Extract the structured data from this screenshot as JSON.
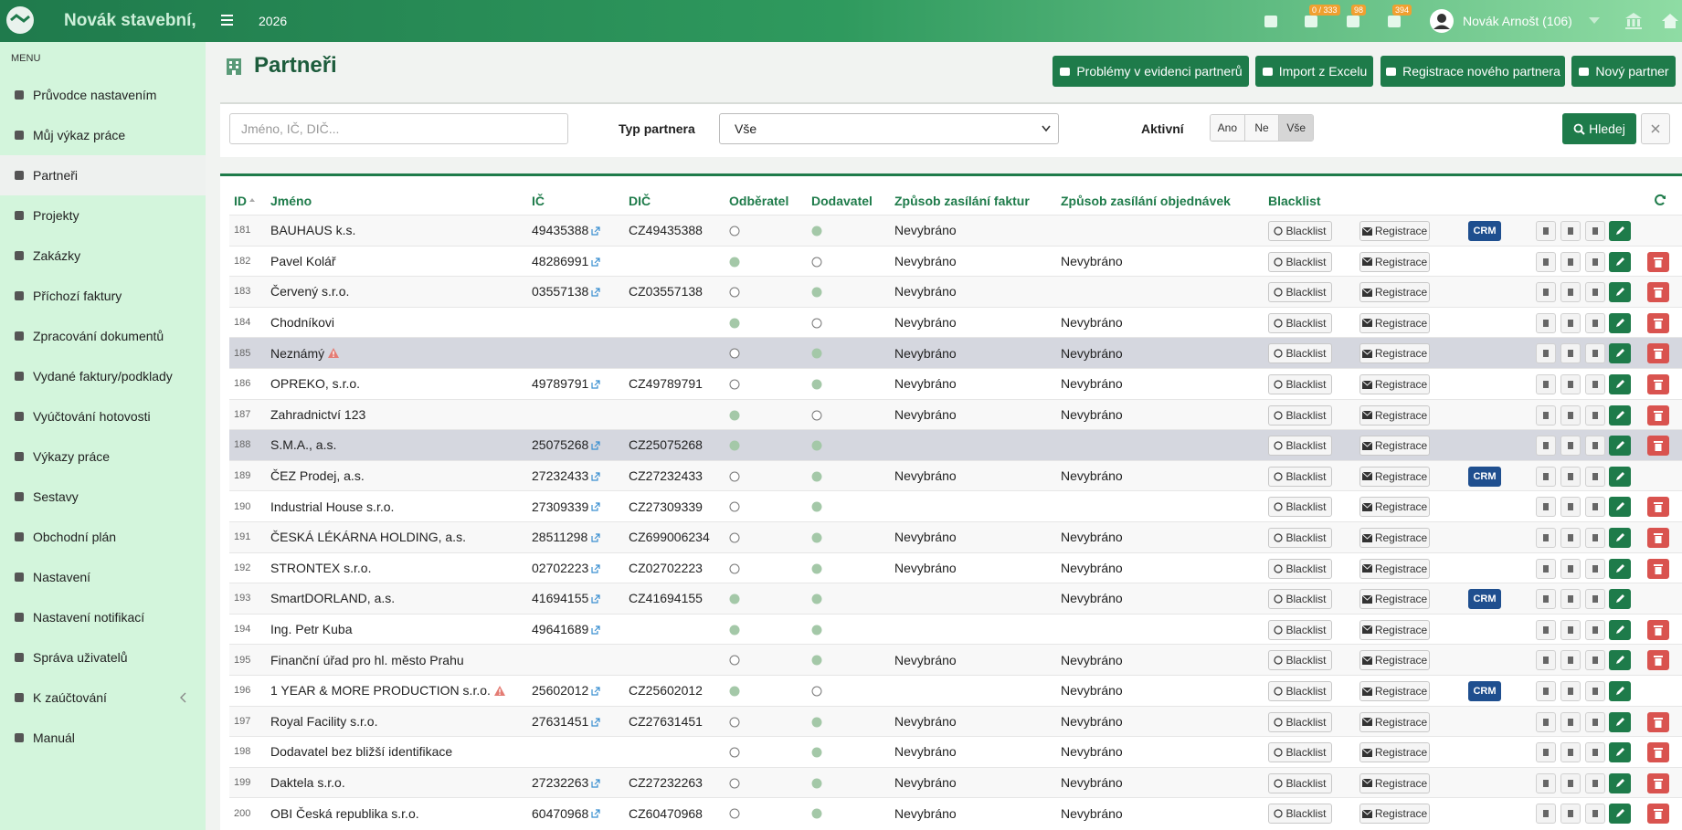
{
  "header": {
    "brand": "Novák stavební,",
    "year": "2026",
    "badges": [
      "0 / 333",
      "98",
      "394"
    ],
    "user": "Novák Arnošt (106)"
  },
  "sidebar": {
    "label": "MENU",
    "items": [
      "Průvodce nastavením",
      "Můj výkaz práce",
      "Partneři",
      "Projekty",
      "Zakázky",
      "Příchozí faktury",
      "Zpracování dokumentů",
      "Vydané faktury/podklady",
      "Vyúčtování hotovosti",
      "Výkazy práce",
      "Sestavy",
      "Obchodní plán",
      "Nastavení",
      "Nastavení notifikací",
      "Správa uživatelů",
      "K zaúčtování",
      "Manuál"
    ],
    "active": 2
  },
  "page": {
    "title": "Partneři",
    "buttons": [
      "Problémy v evidenci partnerů",
      "Import z Excelu",
      "Registrace nového partnera",
      "Nový partner"
    ]
  },
  "filter": {
    "placeholder": "Jméno, IČ, DIČ...",
    "type_label": "Typ partnera",
    "type_value": "Vše",
    "active_label": "Aktivní",
    "active_options": [
      "Ano",
      "Ne",
      "Vše"
    ],
    "active_selected": 2,
    "search": "Hledej"
  },
  "table": {
    "columns": [
      "ID",
      "Jméno",
      "IČ",
      "DIČ",
      "Odběratel",
      "Dodavatel",
      "Způsob zasílání faktur",
      "Způsob zasílání objednávek",
      "Blacklist"
    ],
    "buttons": {
      "blacklist": "Blacklist",
      "registrace": "Registrace",
      "crm": "CRM"
    },
    "rows": [
      {
        "id": 181,
        "name": "BAUHAUS k.s.",
        "ic": "49435388",
        "dic": "CZ49435388",
        "odberatel": false,
        "dodavatel": true,
        "faktury": "Nevybráno",
        "objednavky": null,
        "crm": true,
        "delete": false,
        "highlight": false,
        "warning": false
      },
      {
        "id": 182,
        "name": "Pavel Kolář",
        "ic": "48286991",
        "dic": null,
        "odberatel": true,
        "dodavatel": false,
        "faktury": "Nevybráno",
        "objednavky": "Nevybráno",
        "crm": false,
        "delete": true,
        "highlight": false,
        "warning": false
      },
      {
        "id": 183,
        "name": "Červený s.r.o.",
        "ic": "03557138",
        "dic": "CZ03557138",
        "odberatel": false,
        "dodavatel": true,
        "faktury": "Nevybráno",
        "objednavky": null,
        "crm": false,
        "delete": true,
        "highlight": false,
        "warning": false
      },
      {
        "id": 184,
        "name": "Chodníkovi",
        "ic": null,
        "dic": null,
        "odberatel": true,
        "dodavatel": false,
        "faktury": "Nevybráno",
        "objednavky": "Nevybráno",
        "crm": false,
        "delete": true,
        "highlight": false,
        "warning": false
      },
      {
        "id": 185,
        "name": "Neznámý",
        "ic": null,
        "dic": null,
        "odberatel": false,
        "dodavatel": true,
        "faktury": "Nevybráno",
        "objednavky": "Nevybráno",
        "crm": false,
        "delete": true,
        "highlight": true,
        "warning": true
      },
      {
        "id": 186,
        "name": "OPREKO, s.r.o.",
        "ic": "49789791",
        "dic": "CZ49789791",
        "odberatel": false,
        "dodavatel": true,
        "faktury": "Nevybráno",
        "objednavky": "Nevybráno",
        "crm": false,
        "delete": true,
        "highlight": false,
        "warning": false
      },
      {
        "id": 187,
        "name": "Zahradnictví 123",
        "ic": null,
        "dic": null,
        "odberatel": true,
        "dodavatel": false,
        "faktury": "Nevybráno",
        "objednavky": "Nevybráno",
        "crm": false,
        "delete": true,
        "highlight": false,
        "warning": false
      },
      {
        "id": 188,
        "name": "S.M.A., a.s.",
        "ic": "25075268",
        "dic": "CZ25075268",
        "odberatel": true,
        "dodavatel": true,
        "faktury": null,
        "objednavky": null,
        "crm": false,
        "delete": true,
        "highlight": true,
        "warning": false
      },
      {
        "id": 189,
        "name": "ČEZ Prodej, a.s.",
        "ic": "27232433",
        "dic": "CZ27232433",
        "odberatel": false,
        "dodavatel": true,
        "faktury": "Nevybráno",
        "objednavky": "Nevybráno",
        "crm": true,
        "delete": false,
        "highlight": false,
        "warning": false
      },
      {
        "id": 190,
        "name": "Industrial House s.r.o.",
        "ic": "27309339",
        "dic": "CZ27309339",
        "odberatel": false,
        "dodavatel": true,
        "faktury": null,
        "objednavky": null,
        "crm": false,
        "delete": true,
        "highlight": false,
        "warning": false
      },
      {
        "id": 191,
        "name": "ČESKÁ LÉKÁRNA HOLDING, a.s.",
        "ic": "28511298",
        "dic": "CZ699006234",
        "odberatel": false,
        "dodavatel": true,
        "faktury": "Nevybráno",
        "objednavky": "Nevybráno",
        "crm": false,
        "delete": true,
        "highlight": false,
        "warning": false
      },
      {
        "id": 192,
        "name": "STRONTEX s.r.o.",
        "ic": "02702223",
        "dic": "CZ02702223",
        "odberatel": false,
        "dodavatel": true,
        "faktury": "Nevybráno",
        "objednavky": "Nevybráno",
        "crm": false,
        "delete": true,
        "highlight": false,
        "warning": false
      },
      {
        "id": 193,
        "name": "SmartDORLAND, a.s.",
        "ic": "41694155",
        "dic": "CZ41694155",
        "odberatel": true,
        "dodavatel": true,
        "faktury": null,
        "objednavky": "Nevybráno",
        "crm": true,
        "delete": false,
        "highlight": false,
        "warning": false
      },
      {
        "id": 194,
        "name": "Ing. Petr Kuba",
        "ic": "49641689",
        "dic": null,
        "odberatel": true,
        "dodavatel": true,
        "faktury": null,
        "objednavky": null,
        "crm": false,
        "delete": true,
        "highlight": false,
        "warning": false
      },
      {
        "id": 195,
        "name": "Finanční úřad pro hl. město Prahu",
        "ic": null,
        "dic": null,
        "odberatel": false,
        "dodavatel": true,
        "faktury": "Nevybráno",
        "objednavky": "Nevybráno",
        "crm": false,
        "delete": true,
        "highlight": false,
        "warning": false
      },
      {
        "id": 196,
        "name": "1 YEAR & MORE PRODUCTION s.r.o.",
        "ic": "25602012",
        "dic": "CZ25602012",
        "odberatel": true,
        "dodavatel": false,
        "faktury": null,
        "objednavky": "Nevybráno",
        "crm": true,
        "delete": false,
        "highlight": false,
        "warning": true
      },
      {
        "id": 197,
        "name": "Royal Facility s.r.o.",
        "ic": "27631451",
        "dic": "CZ27631451",
        "odberatel": false,
        "dodavatel": true,
        "faktury": "Nevybráno",
        "objednavky": "Nevybráno",
        "crm": false,
        "delete": true,
        "highlight": false,
        "warning": false
      },
      {
        "id": 198,
        "name": "Dodavatel bez bližší identifikace",
        "ic": null,
        "dic": null,
        "odberatel": false,
        "dodavatel": true,
        "faktury": "Nevybráno",
        "objednavky": "Nevybráno",
        "crm": false,
        "delete": true,
        "highlight": false,
        "warning": false
      },
      {
        "id": 199,
        "name": "Daktela s.r.o.",
        "ic": "27232263",
        "dic": "CZ27232263",
        "odberatel": false,
        "dodavatel": true,
        "faktury": "Nevybráno",
        "objednavky": "Nevybráno",
        "crm": false,
        "delete": true,
        "highlight": false,
        "warning": false
      },
      {
        "id": 200,
        "name": "OBI Česká republika s.r.o.",
        "ic": "60470968",
        "dic": "CZ60470968",
        "odberatel": false,
        "dodavatel": true,
        "faktury": "Nevybráno",
        "objednavky": "Nevybráno",
        "crm": false,
        "delete": true,
        "highlight": false,
        "warning": false
      }
    ]
  }
}
